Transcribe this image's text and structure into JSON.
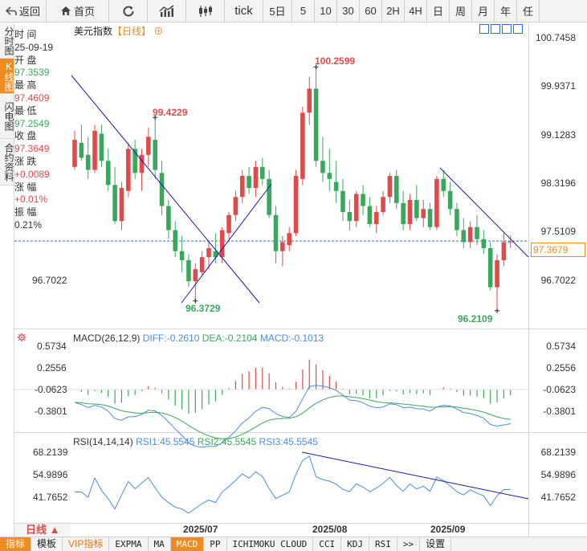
{
  "toolbar": {
    "back_label": "返回",
    "home_label": "首页",
    "tick_label": "tick",
    "periods": [
      "5日",
      "5",
      "10",
      "30",
      "60",
      "2H",
      "4H",
      "日",
      "周",
      "月",
      "年",
      "任"
    ]
  },
  "sidebar": {
    "tabs": [
      "分时图",
      "K线图",
      "闪电图",
      "合约资料"
    ],
    "active": "K线图"
  },
  "info": {
    "time_label": "时 间",
    "time": "25-09-19",
    "open_label": "开 盘",
    "open": "97.3539",
    "high_label": "最 高",
    "high": "97.4609",
    "low_label": "最 低",
    "low": "97.2549",
    "close_label": "收 盘",
    "close": "97.3649",
    "change_label": "涨 跌",
    "change": "+0.0089",
    "change_pct_label": "涨 幅",
    "change_pct": "+0.01%",
    "amplitude_label": "振 幅",
    "amplitude": "0.21%"
  },
  "main": {
    "title": "美元指数",
    "timeframe": "【日线】",
    "last_price": "97.3679",
    "y_ticks": [
      "100.7458",
      "99.9371",
      "99.1283",
      "98.3196",
      "97.5109",
      "96.7022"
    ],
    "left_tick": "96.7022",
    "annotations": {
      "high": "100.2599",
      "peak": "99.4229",
      "low1": "96.3729",
      "low2": "96.2109"
    },
    "colors": {
      "up": "#e24a4a",
      "down": "#3aa85c",
      "trendline": "#1a1aa8",
      "accent": "#f08b1d"
    }
  },
  "macd": {
    "title": "MACD(26,12,9)",
    "diff": "DIFF:-0.2610",
    "dea": "DEA:-0.2104",
    "macd": "MACD:-0.1013",
    "y_ticks": [
      "0.5734",
      "0.2556",
      "-0.0623",
      "-0.3801"
    ]
  },
  "rsi": {
    "title": "RSI(14,14,14)",
    "rsi1": "RSI1:45.5545",
    "rsi2": "RSI2:45.5545",
    "rsi3": "RSI3:45.5545",
    "y_ticks": [
      "68.2139",
      "54.9896",
      "41.7652"
    ]
  },
  "xaxis": {
    "labels": [
      "2025/07",
      "2025/08",
      "2025/09"
    ]
  },
  "bottom": {
    "period": "日线 ▲",
    "tabs": [
      "指标",
      "模板",
      "VIP指标",
      "EXPMA",
      "MA",
      "MACD",
      "PP",
      "ICHIMOKU CLOUD",
      "CCI",
      "KDJ",
      "RSI",
      ">>",
      "设置"
    ],
    "active": "MACD"
  },
  "chart_data": {
    "type": "candlestick",
    "price_range": [
      96.21,
      100.75
    ],
    "candles_ohlc": [
      [
        98.6,
        99.2,
        98.55,
        99.05
      ],
      [
        99.0,
        99.3,
        98.7,
        98.75
      ],
      [
        98.8,
        99.1,
        98.4,
        98.55
      ],
      [
        98.55,
        99.3,
        98.5,
        99.2
      ],
      [
        99.15,
        99.3,
        98.6,
        98.7
      ],
      [
        98.7,
        98.9,
        98.2,
        98.3
      ],
      [
        98.3,
        98.6,
        97.65,
        97.7
      ],
      [
        97.7,
        98.35,
        97.55,
        98.25
      ],
      [
        98.2,
        99.0,
        98.1,
        98.9
      ],
      [
        98.9,
        99.05,
        98.4,
        98.5
      ],
      [
        98.5,
        98.9,
        98.2,
        98.8
      ],
      [
        98.8,
        99.25,
        98.6,
        99.1
      ],
      [
        99.05,
        99.42,
        98.4,
        98.55
      ],
      [
        98.5,
        98.7,
        97.8,
        97.95
      ],
      [
        97.95,
        98.05,
        97.4,
        97.55
      ],
      [
        97.55,
        97.7,
        97.1,
        97.2
      ],
      [
        97.2,
        97.45,
        96.85,
        97.05
      ],
      [
        97.05,
        97.15,
        96.6,
        96.7
      ],
      [
        96.7,
        97.0,
        96.37,
        96.9
      ],
      [
        96.85,
        97.2,
        96.8,
        97.1
      ],
      [
        97.1,
        97.35,
        96.9,
        97.25
      ],
      [
        97.2,
        97.5,
        97.0,
        97.1
      ],
      [
        97.1,
        97.6,
        97.0,
        97.55
      ],
      [
        97.5,
        97.85,
        97.4,
        97.8
      ],
      [
        97.8,
        98.2,
        97.7,
        98.1
      ],
      [
        98.1,
        98.55,
        98.0,
        98.45
      ],
      [
        98.45,
        98.6,
        98.15,
        98.25
      ],
      [
        98.25,
        98.7,
        98.1,
        98.6
      ],
      [
        98.6,
        98.75,
        98.3,
        98.4
      ],
      [
        98.4,
        98.55,
        97.75,
        97.8
      ],
      [
        97.8,
        97.95,
        97.0,
        97.2
      ],
      [
        97.2,
        97.45,
        96.95,
        97.35
      ],
      [
        97.3,
        97.6,
        97.2,
        97.5
      ],
      [
        97.5,
        98.55,
        97.45,
        98.45
      ],
      [
        98.4,
        99.6,
        98.3,
        99.5
      ],
      [
        99.5,
        100.1,
        99.3,
        99.9
      ],
      [
        99.9,
        100.26,
        98.6,
        98.7
      ],
      [
        98.7,
        99.1,
        98.35,
        98.5
      ],
      [
        98.5,
        98.9,
        98.2,
        98.4
      ],
      [
        98.35,
        98.7,
        98.0,
        98.2
      ],
      [
        98.2,
        98.4,
        97.7,
        97.85
      ],
      [
        97.85,
        98.05,
        97.55,
        97.7
      ],
      [
        97.7,
        98.2,
        97.6,
        98.15
      ],
      [
        98.15,
        98.3,
        97.8,
        97.95
      ],
      [
        97.95,
        98.1,
        97.6,
        97.65
      ],
      [
        97.65,
        97.95,
        97.5,
        97.85
      ],
      [
        97.85,
        98.2,
        97.8,
        98.1
      ],
      [
        98.1,
        98.5,
        98.0,
        98.45
      ],
      [
        98.45,
        98.55,
        97.9,
        98.0
      ],
      [
        98.0,
        98.2,
        97.55,
        97.65
      ],
      [
        97.65,
        98.15,
        97.55,
        98.05
      ],
      [
        98.05,
        98.3,
        97.7,
        97.75
      ],
      [
        97.75,
        98.05,
        97.6,
        97.9
      ],
      [
        97.9,
        98.0,
        97.55,
        97.6
      ],
      [
        97.6,
        98.45,
        97.55,
        98.4
      ],
      [
        98.4,
        98.55,
        98.1,
        98.2
      ],
      [
        98.2,
        98.35,
        97.8,
        97.9
      ],
      [
        97.9,
        98.0,
        97.45,
        97.55
      ],
      [
        97.55,
        97.75,
        97.25,
        97.35
      ],
      [
        97.35,
        97.7,
        97.25,
        97.6
      ],
      [
        97.6,
        97.8,
        97.3,
        97.4
      ],
      [
        97.4,
        97.55,
        97.15,
        97.25
      ],
      [
        97.25,
        97.35,
        96.55,
        96.6
      ],
      [
        96.6,
        97.15,
        96.21,
        97.05
      ],
      [
        97.05,
        97.5,
        96.95,
        97.35
      ],
      [
        97.35,
        97.46,
        97.25,
        97.36
      ]
    ],
    "macd": {
      "diff": -0.261,
      "dea": -0.2104,
      "macd": -0.1013,
      "range": [
        -0.38,
        0.57
      ]
    },
    "rsi": {
      "rsi1": 45.5545,
      "rsi2": 45.5545,
      "rsi3": 45.5545,
      "range": [
        41.77,
        68.21
      ]
    }
  }
}
